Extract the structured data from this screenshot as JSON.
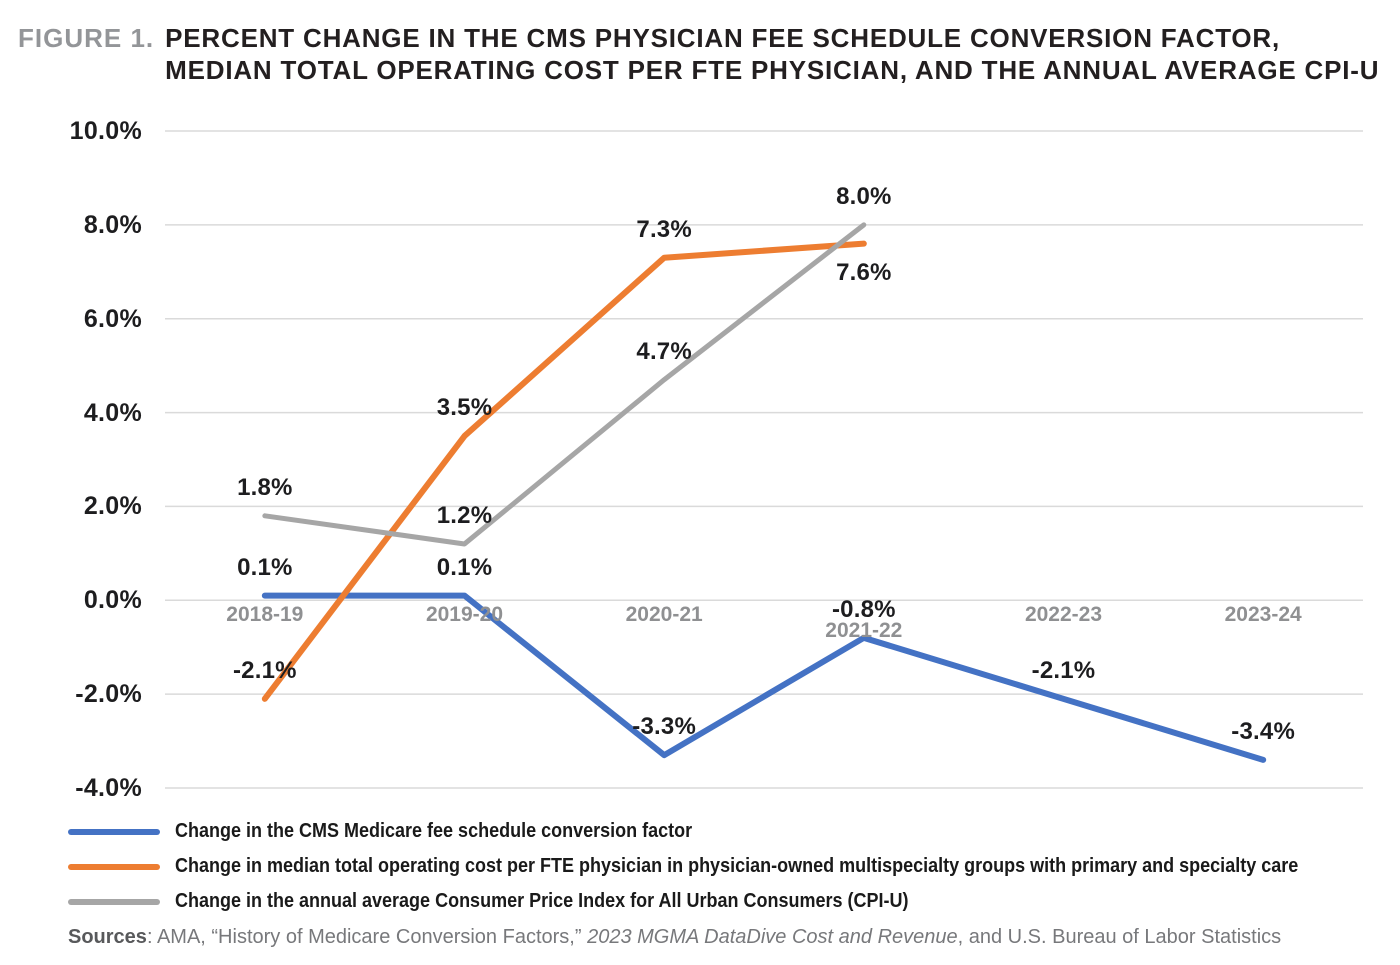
{
  "figure": {
    "label": "FIGURE 1.",
    "title_line1": "PERCENT CHANGE IN THE CMS PHYSICIAN FEE SCHEDULE CONVERSION FACTOR,",
    "title_line2": "MEDIAN TOTAL OPERATING COST PER FTE PHYSICIAN, AND THE ANNUAL AVERAGE CPI-U"
  },
  "chart_data": {
    "type": "line",
    "title": "Percent change in the CMS physician fee schedule conversion factor, median total operating cost per FTE physician, and the annual average CPI-U",
    "categories": [
      "2018-19",
      "2019-20",
      "2020-21",
      "2021-22",
      "2022-23",
      "2023-24"
    ],
    "y_axis": {
      "ticks": [
        "10.0%",
        "8.0%",
        "6.0%",
        "4.0%",
        "2.0%",
        "0.0%",
        "-2.0%",
        "-4.0%"
      ],
      "tick_values": [
        10,
        8,
        6,
        4,
        2,
        0,
        -2,
        -4
      ],
      "min": -4,
      "max": 10
    },
    "grid": true,
    "legend_position": "bottom",
    "series": [
      {
        "name": "cms-conversion-factor",
        "legend_label": "Change in the CMS Medicare fee schedule conversion factor",
        "color": "#4472C4",
        "stroke_width": 6,
        "values": [
          0.1,
          0.1,
          -3.3,
          -0.8,
          -2.1,
          -3.4
        ],
        "labels": [
          "0.1%",
          "0.1%",
          "-3.3%",
          "-0.8%",
          "-2.1%",
          "-3.4%"
        ]
      },
      {
        "name": "operating-cost-per-fte-physician",
        "legend_label": "Change in median total operating cost per FTE physician in physician-owned multispecialty groups with primary and specialty care",
        "color": "#ED7D31",
        "stroke_width": 6,
        "values": [
          -2.1,
          3.5,
          7.3,
          7.6
        ],
        "labels": [
          "-2.1%",
          "3.5%",
          "7.3%",
          "7.6%"
        ]
      },
      {
        "name": "cpi-u",
        "legend_label": "Change in the annual average Consumer Price Index for All Urban Consumers (CPI-U)",
        "color": "#A6A6A6",
        "stroke_width": 5,
        "values": [
          1.8,
          1.2,
          4.7,
          8.0
        ],
        "labels": [
          "1.8%",
          "1.2%",
          "4.7%",
          "8.0%"
        ]
      }
    ],
    "gridline_color": "#DADADA"
  },
  "sources": {
    "prefix": "Sources",
    "text_before_italic": ": AMA, “History of Medicare Conversion Factors,” ",
    "italic": "2023 MGMA DataDive Cost and Revenue",
    "text_after_italic": ", and U.S. Bureau of Labor Statistics"
  }
}
